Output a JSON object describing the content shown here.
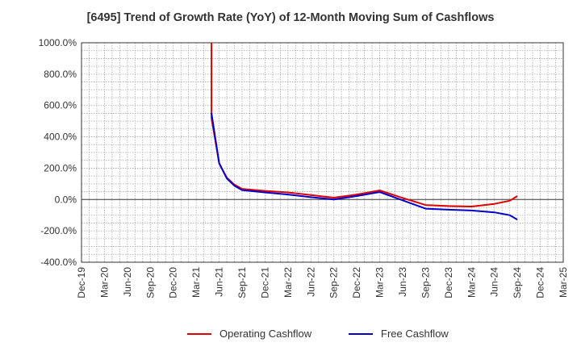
{
  "chart_data": {
    "type": "line",
    "title": "[6495]  Trend of Growth Rate (YoY) of 12-Month Moving Sum of Cashflows",
    "xlabel": "",
    "ylabel": "",
    "ylim": [
      -400,
      1000
    ],
    "yticks": [
      1000,
      800,
      600,
      400,
      200,
      0,
      -200,
      -400
    ],
    "ytick_labels": [
      "1000.0%",
      "800.0%",
      "600.0%",
      "400.0%",
      "200.0%",
      "0.0%",
      "-200.0%",
      "-400.0%"
    ],
    "xlim": [
      "2019-12",
      "2025-03"
    ],
    "xtick_labels": [
      "Dec-19",
      "Mar-20",
      "Jun-20",
      "Sep-20",
      "Dec-20",
      "Mar-21",
      "Jun-21",
      "Sep-21",
      "Dec-21",
      "Mar-22",
      "Jun-22",
      "Sep-22",
      "Dec-22",
      "Mar-23",
      "Jun-23",
      "Sep-23",
      "Dec-23",
      "Mar-24",
      "Jun-24",
      "Sep-24",
      "Dec-24",
      "Mar-25"
    ],
    "grid": true,
    "legend_position": "bottom",
    "series": [
      {
        "name": "Operating Cashflow",
        "color": "#dd0000",
        "points": [
          [
            "2021-05",
            1000
          ],
          [
            "2021-05",
            520
          ],
          [
            "2021-06",
            230
          ],
          [
            "2021-07",
            140
          ],
          [
            "2021-08",
            95
          ],
          [
            "2021-09",
            68
          ],
          [
            "2021-12",
            55
          ],
          [
            "2022-03",
            45
          ],
          [
            "2022-06",
            28
          ],
          [
            "2022-09",
            12
          ],
          [
            "2022-12",
            32
          ],
          [
            "2023-03",
            58
          ],
          [
            "2023-06",
            10
          ],
          [
            "2023-09",
            -35
          ],
          [
            "2023-12",
            -42
          ],
          [
            "2024-03",
            -45
          ],
          [
            "2024-06",
            -28
          ],
          [
            "2024-08",
            -8
          ],
          [
            "2024-09",
            22
          ]
        ]
      },
      {
        "name": "Free Cashflow",
        "color": "#0000cc",
        "points": [
          [
            "2021-05",
            550
          ],
          [
            "2021-06",
            232
          ],
          [
            "2021-07",
            135
          ],
          [
            "2021-08",
            88
          ],
          [
            "2021-09",
            60
          ],
          [
            "2021-12",
            45
          ],
          [
            "2022-03",
            32
          ],
          [
            "2022-06",
            15
          ],
          [
            "2022-09",
            0
          ],
          [
            "2022-12",
            22
          ],
          [
            "2023-03",
            48
          ],
          [
            "2023-06",
            -5
          ],
          [
            "2023-09",
            -58
          ],
          [
            "2023-12",
            -65
          ],
          [
            "2024-03",
            -70
          ],
          [
            "2024-06",
            -82
          ],
          [
            "2024-08",
            -100
          ],
          [
            "2024-09",
            -128
          ]
        ]
      }
    ]
  }
}
